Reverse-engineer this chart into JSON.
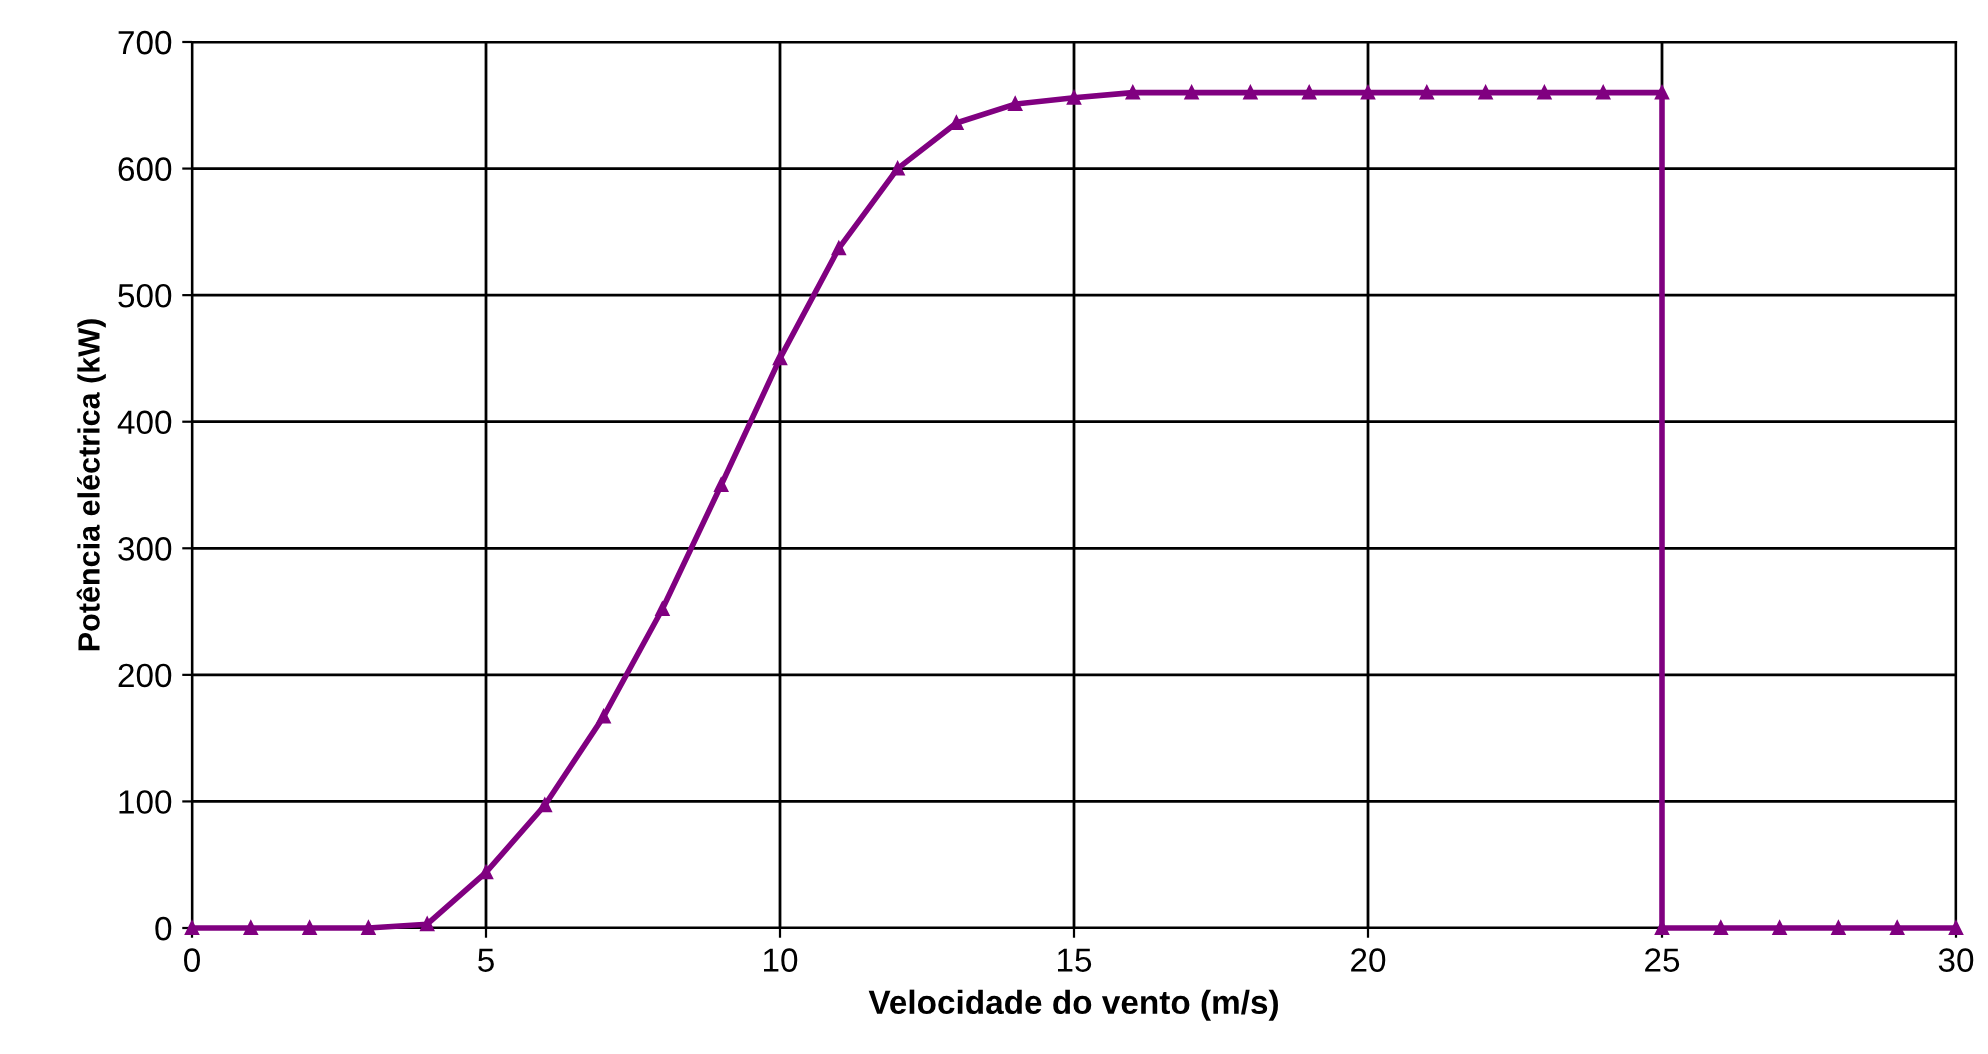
{
  "chart_data": {
    "type": "line",
    "xlabel": "Velocidade do vento (m/s)",
    "ylabel": "Potência eléctrica (kW)",
    "xlim": [
      0,
      30
    ],
    "xticks": [
      0,
      5,
      10,
      15,
      20,
      25,
      30
    ],
    "ylim": [
      0,
      700
    ],
    "yticks": [
      0,
      100,
      200,
      300,
      400,
      500,
      600,
      700
    ],
    "grid": true,
    "marker": "triangle",
    "line_style": "solid",
    "series": [
      {
        "color": "#800080",
        "x": [
          0,
          1,
          2,
          3,
          4,
          5,
          6,
          7,
          8,
          9,
          10,
          11,
          12,
          13,
          14,
          15,
          16,
          17,
          18,
          19,
          20,
          21,
          22,
          23,
          24,
          25,
          25,
          26,
          27,
          28,
          29,
          30
        ],
        "values": [
          0,
          0,
          0,
          0,
          3,
          44,
          97,
          167,
          252,
          350,
          450,
          537,
          600,
          636,
          651,
          656,
          660,
          660,
          660,
          660,
          660,
          660,
          660,
          660,
          660,
          660,
          0,
          0,
          0,
          0,
          0,
          0
        ]
      }
    ]
  }
}
